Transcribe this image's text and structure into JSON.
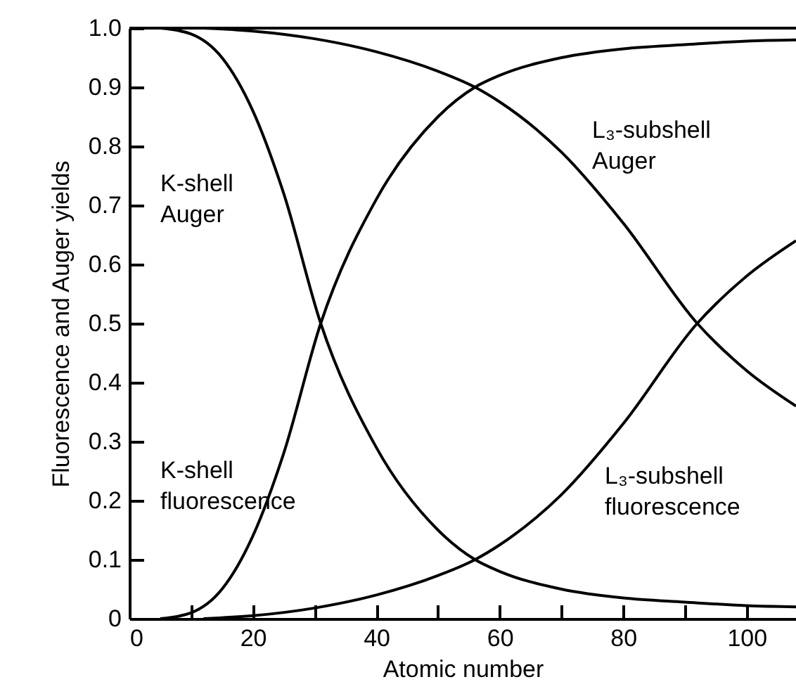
{
  "chart_data": {
    "type": "line",
    "xlabel": "Atomic number",
    "ylabel": "Fluorescence and Auger yields",
    "xlim": [
      0,
      108
    ],
    "ylim": [
      0,
      1
    ],
    "xticks": [
      0,
      {
        "value": 10,
        "label": null
      },
      20,
      {
        "value": 30,
        "label": null
      },
      40,
      {
        "value": 50,
        "label": null
      },
      60,
      {
        "value": 70,
        "label": null
      },
      80,
      {
        "value": 90,
        "label": null
      },
      100
    ],
    "yticks": [
      0,
      0.1,
      0.2,
      0.3,
      0.4,
      0.5,
      0.6,
      0.7,
      0.8,
      0.9,
      {
        "value": 1,
        "label": "1.0"
      }
    ],
    "grid": false,
    "marker": "none",
    "line_style": "solid",
    "ref_lines": [
      {
        "axis": "y",
        "value": 1,
        "label": null
      }
    ],
    "series": [
      {
        "color": "#000000",
        "x": [
          5,
          10,
          15,
          20,
          25,
          31,
          40,
          50,
          56,
          60,
          70,
          80,
          90,
          100,
          108
        ],
        "values": [
          1,
          0.99,
          0.95,
          0.86,
          0.72,
          0.5,
          0.29,
          0.15,
          0.1,
          0.08,
          0.05,
          0.035,
          0.028,
          0.022,
          0.02
        ]
      },
      {
        "color": "#000000",
        "x": [
          5,
          10,
          15,
          20,
          25,
          31,
          40,
          50,
          56,
          60,
          70,
          80,
          90,
          100,
          108
        ],
        "values": [
          0,
          0.01,
          0.05,
          0.14,
          0.28,
          0.5,
          0.71,
          0.85,
          0.9,
          0.92,
          0.95,
          0.965,
          0.972,
          0.978,
          0.98
        ]
      },
      {
        "color": "#000000",
        "x": [
          12,
          20,
          30,
          40,
          50,
          56,
          60,
          70,
          80,
          92,
          100,
          108
        ],
        "values": [
          1,
          0.995,
          0.982,
          0.96,
          0.927,
          0.9,
          0.875,
          0.79,
          0.67,
          0.5,
          0.42,
          0.36
        ]
      },
      {
        "color": "#000000",
        "x": [
          12,
          20,
          30,
          40,
          50,
          56,
          60,
          70,
          80,
          92,
          100,
          108
        ],
        "values": [
          0,
          0.005,
          0.018,
          0.04,
          0.073,
          0.1,
          0.125,
          0.21,
          0.33,
          0.5,
          0.58,
          0.64
        ]
      }
    ],
    "annotations": [
      "K-shell\nAuger",
      "L₃-subshell\nAuger",
      "K-shell\nfluorescence",
      "L₃-subshell\nfluorescence"
    ]
  }
}
